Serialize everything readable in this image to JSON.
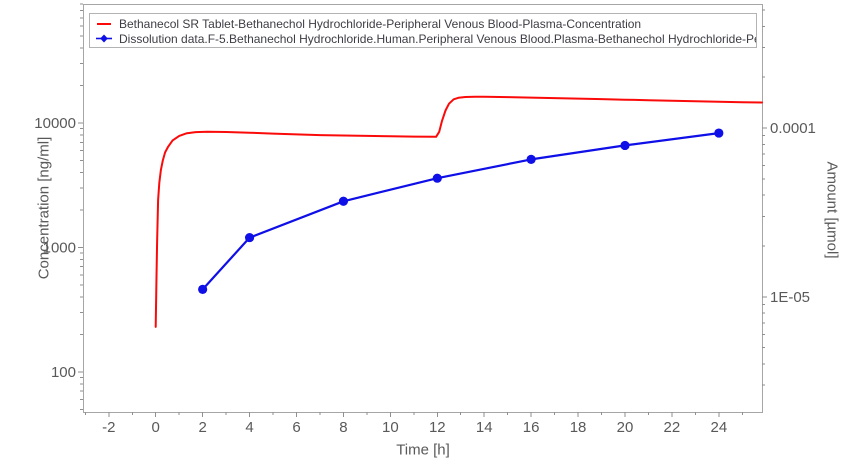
{
  "chart_data": {
    "type": "line",
    "title": "",
    "xlabel": "Time [h]",
    "ylabel_left": "Concentration [ng/ml]",
    "ylabel_right": "Amount [µmol]",
    "grid": false,
    "legend_position": "top",
    "x_axis": {
      "min": -3.1,
      "max": 25.84,
      "major_ticks": [
        -2,
        0,
        2,
        4,
        6,
        8,
        10,
        12,
        14,
        16,
        18,
        20,
        22,
        24
      ],
      "minor_tick_step": 1
    },
    "y_left_axis": {
      "scale": "log",
      "min": 47.6,
      "max": 90400,
      "ticks": [
        {
          "value": 100,
          "label": "100"
        },
        {
          "value": 1000,
          "label": "1000"
        },
        {
          "value": 10000,
          "label": "10000"
        }
      ]
    },
    "y_right_axis": {
      "scale": "log",
      "min": 2.08e-06,
      "max": 0.000542,
      "ticks": [
        {
          "value": 1e-05,
          "label": "1E-05"
        },
        {
          "value": 0.0001,
          "label": "0.0001"
        }
      ]
    },
    "series": [
      {
        "name": "Bethanecol SR Tablet-Bethanechol Hydrochloride-Peripheral Venous Blood-Plasma-Concentration",
        "type": "line",
        "color": "#fb0a0a",
        "marker": "none",
        "points": [
          [
            0,
            230
          ],
          [
            0.03,
            520
          ],
          [
            0.06,
            1100
          ],
          [
            0.1,
            2400
          ],
          [
            0.15,
            3300
          ],
          [
            0.22,
            4200
          ],
          [
            0.3,
            5000
          ],
          [
            0.4,
            5800
          ],
          [
            0.52,
            6400
          ],
          [
            0.72,
            7250
          ],
          [
            1,
            7870
          ],
          [
            1.3,
            8250
          ],
          [
            1.7,
            8450
          ],
          [
            2.2,
            8510
          ],
          [
            3,
            8470
          ],
          [
            4,
            8350
          ],
          [
            5,
            8220
          ],
          [
            6,
            8100
          ],
          [
            7,
            8000
          ],
          [
            8,
            7930
          ],
          [
            9,
            7870
          ],
          [
            10,
            7820
          ],
          [
            11,
            7780
          ],
          [
            11.95,
            7740
          ],
          [
            12.08,
            8500
          ],
          [
            12.2,
            10400
          ],
          [
            12.35,
            12600
          ],
          [
            12.5,
            14300
          ],
          [
            12.7,
            15500
          ],
          [
            12.9,
            15950
          ],
          [
            13.2,
            16180
          ],
          [
            13.6,
            16260
          ],
          [
            14,
            16250
          ],
          [
            15,
            16150
          ],
          [
            16,
            16000
          ],
          [
            17,
            15850
          ],
          [
            18,
            15700
          ],
          [
            19,
            15550
          ],
          [
            20,
            15400
          ],
          [
            21,
            15250
          ],
          [
            22,
            15100
          ],
          [
            23,
            14950
          ],
          [
            24,
            14800
          ],
          [
            25,
            14700
          ],
          [
            25.84,
            14620
          ]
        ]
      },
      {
        "name": "Dissolution data.F-5.Bethanechol Hydrochloride.Human.Peripheral Venous Blood.Plasma-Bethanechol Hydrochloride-Pe",
        "type": "line+scatter",
        "color": "#0f0fe8",
        "marker": "circle",
        "points": [
          [
            2,
            460
          ],
          [
            4,
            1200
          ],
          [
            8,
            2350
          ],
          [
            12,
            3600
          ],
          [
            16,
            5100
          ],
          [
            20,
            6600
          ],
          [
            24,
            8300
          ]
        ]
      }
    ]
  },
  "styles": {
    "axis_color": "#a6a6a6",
    "tick_color": "#8f8f8f",
    "tick_label_color": "#595959",
    "legend_border": "#b3b3b3",
    "legend_text": "#3d3d45"
  }
}
